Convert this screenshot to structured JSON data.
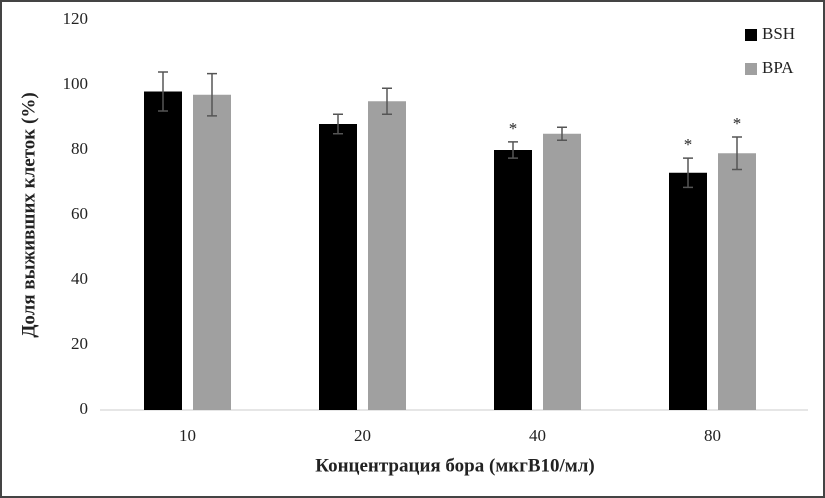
{
  "chart_data": {
    "type": "bar",
    "y_label": "Доля выживших клеток (%)",
    "x_label": "Концентрация бора (мкгB10/мл)",
    "categories": [
      "10",
      "20",
      "40",
      "80"
    ],
    "series": [
      {
        "name": "BSH",
        "color": "#000000",
        "values": [
          98,
          88,
          80,
          73
        ],
        "errors": [
          6,
          3,
          2.5,
          4.5
        ],
        "significance": [
          null,
          null,
          "*",
          "*"
        ]
      },
      {
        "name": "BPA",
        "color": "#a0a0a0",
        "values": [
          97,
          95,
          85,
          79
        ],
        "errors": [
          6.5,
          4,
          2,
          5
        ],
        "significance": [
          null,
          null,
          null,
          "*"
        ]
      }
    ],
    "ylim": [
      0,
      120
    ],
    "yticks": [
      0,
      20,
      40,
      60,
      80,
      100,
      120
    ],
    "grid": false,
    "legend": "top-right"
  }
}
